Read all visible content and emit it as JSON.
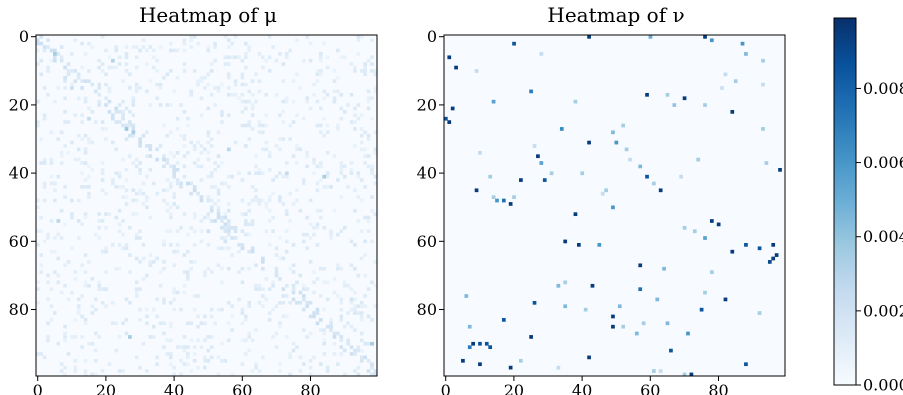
{
  "chart_data": [
    {
      "type": "heatmap",
      "title": "Heatmap of μ",
      "rows": 100,
      "cols": 100,
      "x_ticks": [
        0,
        20,
        40,
        60,
        80
      ],
      "y_ticks": [
        0,
        20,
        40,
        60,
        80
      ],
      "colormap": "Blues",
      "vmin": 0.0,
      "vmax": 0.0099,
      "background_value": 0.0,
      "pattern": "dense sparse noise of low values with a faint diagonal band",
      "cells": [
        [
          5,
          5,
          0.0035
        ],
        [
          7,
          22,
          0.003
        ],
        [
          12,
          8,
          0.0018
        ],
        [
          15,
          10,
          0.0022
        ],
        [
          24,
          15,
          0.0025
        ],
        [
          27,
          26,
          0.0038
        ],
        [
          28,
          28,
          0.0035
        ],
        [
          30,
          30,
          0.002
        ],
        [
          33,
          56,
          0.0028
        ],
        [
          36,
          37,
          0.0022
        ],
        [
          39,
          40,
          0.002
        ],
        [
          40,
          73,
          0.0025
        ],
        [
          41,
          84,
          0.0035
        ],
        [
          43,
          44,
          0.0024
        ],
        [
          45,
          46,
          0.0022
        ],
        [
          47,
          48,
          0.002
        ],
        [
          54,
          6,
          0.0028
        ],
        [
          57,
          50,
          0.002
        ],
        [
          60,
          55,
          0.0018
        ],
        [
          62,
          60,
          0.002
        ],
        [
          88,
          27,
          0.0035
        ],
        [
          90,
          98,
          0.0035
        ],
        [
          84,
          82,
          0.0022
        ],
        [
          77,
          92,
          0.0018
        ]
      ]
    },
    {
      "type": "heatmap",
      "title": "Heatmap of ν",
      "rows": 100,
      "cols": 100,
      "x_ticks": [
        0,
        20,
        40,
        60,
        80
      ],
      "y_ticks": [
        0,
        20,
        40,
        60,
        80
      ],
      "colormap": "Blues",
      "vmin": 0.0,
      "vmax": 0.0099,
      "background_value": 0.0,
      "pattern": "sparse isolated cells",
      "cells": [
        [
          0,
          42,
          0.0095
        ],
        [
          0,
          60,
          0.005
        ],
        [
          0,
          76,
          0.0095
        ],
        [
          1,
          78,
          0.006
        ],
        [
          2,
          20,
          0.0085
        ],
        [
          2,
          87,
          0.006
        ],
        [
          5,
          28,
          0.0025
        ],
        [
          5,
          88,
          0.0045
        ],
        [
          6,
          1,
          0.0095
        ],
        [
          7,
          93,
          0.0035
        ],
        [
          9,
          3,
          0.0095
        ],
        [
          10,
          9,
          0.0025
        ],
        [
          11,
          82,
          0.0025
        ],
        [
          13,
          85,
          0.0035
        ],
        [
          14,
          93,
          0.0025
        ],
        [
          15,
          81,
          0.0022
        ],
        [
          16,
          25,
          0.007
        ],
        [
          17,
          59,
          0.0095
        ],
        [
          17,
          65,
          0.0035
        ],
        [
          18,
          70,
          0.0095
        ],
        [
          19,
          14,
          0.0055
        ],
        [
          19,
          38,
          0.0035
        ],
        [
          20,
          76,
          0.0035
        ],
        [
          20,
          67,
          0.004
        ],
        [
          21,
          2,
          0.0095
        ],
        [
          22,
          84,
          0.0095
        ],
        [
          24,
          0,
          0.0085
        ],
        [
          25,
          1,
          0.0095
        ],
        [
          26,
          52,
          0.0035
        ],
        [
          27,
          34,
          0.0065
        ],
        [
          27,
          93,
          0.0035
        ],
        [
          28,
          49,
          0.0045
        ],
        [
          31,
          42,
          0.0095
        ],
        [
          31,
          50,
          0.006
        ],
        [
          32,
          26,
          0.0025
        ],
        [
          33,
          53,
          0.0035
        ],
        [
          34,
          10,
          0.0025
        ],
        [
          35,
          27,
          0.0095
        ],
        [
          36,
          54,
          0.0025
        ],
        [
          36,
          74,
          0.0035
        ],
        [
          37,
          28,
          0.0055
        ],
        [
          37,
          94,
          0.0035
        ],
        [
          38,
          57,
          0.0045
        ],
        [
          39,
          98,
          0.0095
        ],
        [
          40,
          31,
          0.0035
        ],
        [
          40,
          40,
          0.0035
        ],
        [
          41,
          13,
          0.0035
        ],
        [
          41,
          59,
          0.0085
        ],
        [
          41,
          69,
          0.0025
        ],
        [
          42,
          22,
          0.0095
        ],
        [
          42,
          29,
          0.0085
        ],
        [
          43,
          61,
          0.0035
        ],
        [
          45,
          9,
          0.0095
        ],
        [
          45,
          47,
          0.0035
        ],
        [
          45,
          63,
          0.0095
        ],
        [
          46,
          46,
          0.0025
        ],
        [
          47,
          14,
          0.0035
        ],
        [
          47,
          20,
          0.0035
        ],
        [
          48,
          15,
          0.006
        ],
        [
          48,
          17,
          0.0075
        ],
        [
          49,
          19,
          0.0095
        ],
        [
          50,
          49,
          0.006
        ],
        [
          52,
          38,
          0.0095
        ],
        [
          54,
          78,
          0.0095
        ],
        [
          55,
          80,
          0.0095
        ],
        [
          56,
          70,
          0.0035
        ],
        [
          57,
          73,
          0.0035
        ],
        [
          59,
          76,
          0.0055
        ],
        [
          60,
          35,
          0.0095
        ],
        [
          61,
          39,
          0.0095
        ],
        [
          61,
          45,
          0.006
        ],
        [
          61,
          88,
          0.0085
        ],
        [
          61,
          96,
          0.0095
        ],
        [
          62,
          92,
          0.0085
        ],
        [
          63,
          84,
          0.0095
        ],
        [
          64,
          97,
          0.0095
        ],
        [
          65,
          96,
          0.0095
        ],
        [
          66,
          95,
          0.009
        ],
        [
          67,
          57,
          0.0095
        ],
        [
          68,
          64,
          0.0045
        ],
        [
          69,
          78,
          0.0035
        ],
        [
          72,
          35,
          0.0035
        ],
        [
          73,
          33,
          0.0045
        ],
        [
          73,
          43,
          0.0095
        ],
        [
          74,
          57,
          0.0075
        ],
        [
          75,
          76,
          0.0035
        ],
        [
          76,
          6,
          0.0045
        ],
        [
          77,
          62,
          0.0045
        ],
        [
          77,
          82,
          0.0095
        ],
        [
          78,
          26,
          0.0085
        ],
        [
          79,
          35,
          0.0045
        ],
        [
          79,
          51,
          0.0045
        ],
        [
          80,
          41,
          0.0035
        ],
        [
          80,
          75,
          0.0085
        ],
        [
          81,
          92,
          0.0035
        ],
        [
          82,
          49,
          0.0095
        ],
        [
          83,
          17,
          0.0085
        ],
        [
          84,
          58,
          0.0035
        ],
        [
          84,
          65,
          0.0045
        ],
        [
          85,
          7,
          0.0045
        ],
        [
          85,
          49,
          0.0095
        ],
        [
          85,
          52,
          0.0035
        ],
        [
          87,
          56,
          0.0045
        ],
        [
          87,
          71,
          0.006
        ],
        [
          88,
          25,
          0.0095
        ],
        [
          90,
          8,
          0.0095
        ],
        [
          90,
          10,
          0.0085
        ],
        [
          90,
          12,
          0.0085
        ],
        [
          91,
          7,
          0.007
        ],
        [
          91,
          13,
          0.0085
        ],
        [
          92,
          66,
          0.0085
        ],
        [
          94,
          42,
          0.0095
        ],
        [
          95,
          5,
          0.0095
        ],
        [
          95,
          22,
          0.0035
        ],
        [
          96,
          10,
          0.0095
        ],
        [
          96,
          88,
          0.0085
        ],
        [
          97,
          19,
          0.0095
        ],
        [
          97,
          33,
          0.0025
        ],
        [
          98,
          61,
          0.0035
        ],
        [
          98,
          63,
          0.0025
        ],
        [
          99,
          72,
          0.0095
        ],
        [
          99,
          70,
          0.0035
        ]
      ]
    }
  ],
  "colorbar": {
    "colormap": "Blues",
    "vmin": 0.0,
    "vmax": 0.0099,
    "ticks": [
      0.0,
      0.002,
      0.004,
      0.006,
      0.008
    ],
    "tick_labels": [
      "0.000",
      "0.002",
      "0.004",
      "0.006",
      "0.008"
    ]
  }
}
